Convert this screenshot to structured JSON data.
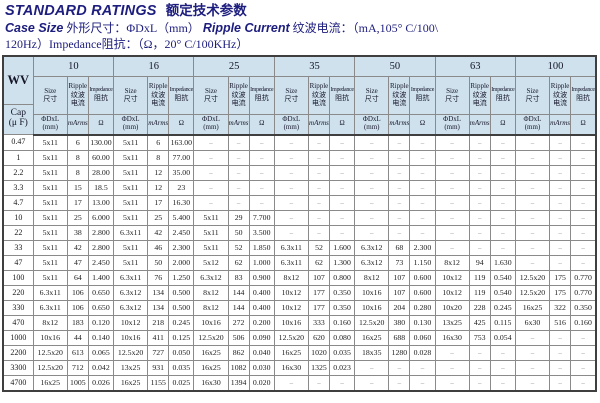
{
  "page": {
    "title_en": "STANDARD RATINGS",
    "title_cn": "额定技术参数",
    "case_size_en": "Case Size",
    "case_size_rest": " 外形尺寸：ΦDxL（mm）  ",
    "ripple_en": "Ripple Current",
    "ripple_rest": " 纹波电流：（mA,105° C/100\\",
    "spec_line2": "120Hz）Impedance阻抗：（Ω，20° C/100KHz）"
  },
  "table": {
    "corner": {
      "wv": "WV",
      "cap": "Cap",
      "cap_unit": "(μ F)"
    },
    "voltages": [
      "10",
      "16",
      "25",
      "35",
      "50",
      "63",
      "100"
    ],
    "subheaders": {
      "size_en": "Size",
      "size_cn": "尺寸",
      "ripple_en": "Ripple",
      "ripple_cn1": "纹波",
      "ripple_cn2": "电流",
      "imp_en": "Impedance",
      "imp_cn": "阻抗"
    },
    "units": {
      "size1": "ΦDxL",
      "size2": "(mm)",
      "ripple": "mArms",
      "imp": "Ω"
    },
    "rows": [
      {
        "cap": "0.47",
        "groups": [
          [
            "5x11",
            "6",
            "130.00"
          ],
          [
            "5x11",
            "6",
            "163.00"
          ],
          [
            "–",
            "–",
            "–"
          ],
          [
            "–",
            "–",
            "–"
          ],
          [
            "–",
            "–",
            "–"
          ],
          [
            "–",
            "–",
            "–"
          ],
          [
            "–",
            "–",
            "–"
          ]
        ]
      },
      {
        "cap": "1",
        "groups": [
          [
            "5x11",
            "8",
            "60.00"
          ],
          [
            "5x11",
            "8",
            "77.00"
          ],
          [
            "–",
            "–",
            "–"
          ],
          [
            "–",
            "–",
            "–"
          ],
          [
            "–",
            "–",
            "–"
          ],
          [
            "–",
            "–",
            "–"
          ],
          [
            "–",
            "–",
            "–"
          ]
        ]
      },
      {
        "cap": "2.2",
        "groups": [
          [
            "5x11",
            "8",
            "28.00"
          ],
          [
            "5x11",
            "12",
            "35.00"
          ],
          [
            "–",
            "–",
            "–"
          ],
          [
            "–",
            "–",
            "–"
          ],
          [
            "–",
            "–",
            "–"
          ],
          [
            "–",
            "–",
            "–"
          ],
          [
            "–",
            "–",
            "–"
          ]
        ]
      },
      {
        "cap": "3.3",
        "groups": [
          [
            "5x11",
            "15",
            "18.5"
          ],
          [
            "5x11",
            "12",
            "23"
          ],
          [
            "–",
            "–",
            "–"
          ],
          [
            "–",
            "–",
            "–"
          ],
          [
            "–",
            "–",
            "–"
          ],
          [
            "–",
            "–",
            "–"
          ],
          [
            "–",
            "–",
            "–"
          ]
        ]
      },
      {
        "cap": "4.7",
        "groups": [
          [
            "5x11",
            "17",
            "13.00"
          ],
          [
            "5x11",
            "17",
            "16.30"
          ],
          [
            "–",
            "–",
            "–"
          ],
          [
            "–",
            "–",
            "–"
          ],
          [
            "–",
            "–",
            "–"
          ],
          [
            "–",
            "–",
            "–"
          ],
          [
            "–",
            "–",
            "–"
          ]
        ]
      },
      {
        "cap": "10",
        "groups": [
          [
            "5x11",
            "25",
            "6.000"
          ],
          [
            "5x11",
            "25",
            "5.400"
          ],
          [
            "5x11",
            "29",
            "7.700"
          ],
          [
            "–",
            "–",
            "–"
          ],
          [
            "–",
            "–",
            "–"
          ],
          [
            "–",
            "–",
            "–"
          ],
          [
            "–",
            "–",
            "–"
          ]
        ]
      },
      {
        "cap": "22",
        "groups": [
          [
            "5x11",
            "38",
            "2.800"
          ],
          [
            "6.3x11",
            "42",
            "2.450"
          ],
          [
            "5x11",
            "50",
            "3.500"
          ],
          [
            "–",
            "–",
            "–"
          ],
          [
            "–",
            "–",
            "–"
          ],
          [
            "–",
            "–",
            "–"
          ],
          [
            "–",
            "–",
            "–"
          ]
        ]
      },
      {
        "cap": "33",
        "groups": [
          [
            "5x11",
            "42",
            "2.800"
          ],
          [
            "5x11",
            "46",
            "2.300"
          ],
          [
            "5x11",
            "52",
            "1.850"
          ],
          [
            "6.3x11",
            "52",
            "1.600"
          ],
          [
            "6.3x12",
            "68",
            "2.300"
          ],
          [
            "–",
            "–",
            "–"
          ],
          [
            "–",
            "–",
            "–"
          ]
        ]
      },
      {
        "cap": "47",
        "groups": [
          [
            "5x11",
            "47",
            "2.450"
          ],
          [
            "5x11",
            "50",
            "2.000"
          ],
          [
            "5x12",
            "62",
            "1.000"
          ],
          [
            "6.3x11",
            "62",
            "1.300"
          ],
          [
            "6.3x12",
            "73",
            "1.150"
          ],
          [
            "8x12",
            "94",
            "1.630"
          ],
          [
            "–",
            "–",
            "–"
          ]
        ]
      },
      {
        "cap": "100",
        "groups": [
          [
            "5x11",
            "64",
            "1.400"
          ],
          [
            "6.3x11",
            "76",
            "1.250"
          ],
          [
            "6.3x12",
            "83",
            "0.900"
          ],
          [
            "8x12",
            "107",
            "0.800"
          ],
          [
            "8x12",
            "107",
            "0.600"
          ],
          [
            "10x12",
            "119",
            "0.540"
          ],
          [
            "12.5x20",
            "175",
            "0.770"
          ]
        ]
      },
      {
        "cap": "220",
        "groups": [
          [
            "6.3x11",
            "106",
            "0.650"
          ],
          [
            "6.3x12",
            "134",
            "0.500"
          ],
          [
            "8x12",
            "144",
            "0.400"
          ],
          [
            "10x12",
            "177",
            "0.350"
          ],
          [
            "10x16",
            "107",
            "0.600"
          ],
          [
            "10x12",
            "119",
            "0.540"
          ],
          [
            "12.5x20",
            "175",
            "0.770"
          ]
        ]
      },
      {
        "cap": "330",
        "groups": [
          [
            "6.3x11",
            "106",
            "0.650"
          ],
          [
            "6.3x12",
            "134",
            "0.500"
          ],
          [
            "8x12",
            "144",
            "0.400"
          ],
          [
            "10x12",
            "177",
            "0.350"
          ],
          [
            "10x16",
            "204",
            "0.280"
          ],
          [
            "10x20",
            "228",
            "0.245"
          ],
          [
            "16x25",
            "322",
            "0.350"
          ]
        ]
      },
      {
        "cap": "470",
        "groups": [
          [
            "8x12",
            "183",
            "0.120"
          ],
          [
            "10x12",
            "218",
            "0.245"
          ],
          [
            "10x16",
            "272",
            "0.200"
          ],
          [
            "10x16",
            "333",
            "0.160"
          ],
          [
            "12.5x20",
            "380",
            "0.130"
          ],
          [
            "13x25",
            "425",
            "0.115"
          ],
          [
            "6x30",
            "516",
            "0.160"
          ]
        ]
      },
      {
        "cap": "1000",
        "groups": [
          [
            "10x16",
            "44",
            "0.140"
          ],
          [
            "10x16",
            "411",
            "0.125"
          ],
          [
            "12.5x20",
            "506",
            "0.090"
          ],
          [
            "12.5x20",
            "620",
            "0.080"
          ],
          [
            "16x25",
            "688",
            "0.060"
          ],
          [
            "16x30",
            "753",
            "0.054"
          ],
          [
            "–",
            "–",
            "–"
          ]
        ]
      },
      {
        "cap": "2200",
        "groups": [
          [
            "12.5x20",
            "613",
            "0.065"
          ],
          [
            "12.5x20",
            "727",
            "0.050"
          ],
          [
            "16x25",
            "862",
            "0.040"
          ],
          [
            "16x25",
            "1020",
            "0.035"
          ],
          [
            "18x35",
            "1280",
            "0.028"
          ],
          [
            "–",
            "–",
            "–"
          ],
          [
            "–",
            "–",
            "–"
          ]
        ]
      },
      {
        "cap": "3300",
        "groups": [
          [
            "12.5x20",
            "712",
            "0.042"
          ],
          [
            "13x25",
            "931",
            "0.035"
          ],
          [
            "16x25",
            "1082",
            "0.030"
          ],
          [
            "16x30",
            "1325",
            "0.023"
          ],
          [
            "–",
            "–",
            "–"
          ],
          [
            "–",
            "–",
            "–"
          ],
          [
            "–",
            "–",
            "–"
          ]
        ]
      },
      {
        "cap": "4700",
        "groups": [
          [
            "16x25",
            "1005",
            "0.026"
          ],
          [
            "16x25",
            "1155",
            "0.025"
          ],
          [
            "16x30",
            "1394",
            "0.020"
          ],
          [
            "–",
            "–",
            "–"
          ],
          [
            "–",
            "–",
            "–"
          ],
          [
            "–",
            "–",
            "–"
          ],
          [
            "–",
            "–",
            "–"
          ]
        ]
      }
    ],
    "colors": {
      "header_bg": "#cfe1ec",
      "title_navy": "#1d1d7e",
      "grid": "#8a8a8a",
      "frame": "#3f3f3f"
    }
  }
}
